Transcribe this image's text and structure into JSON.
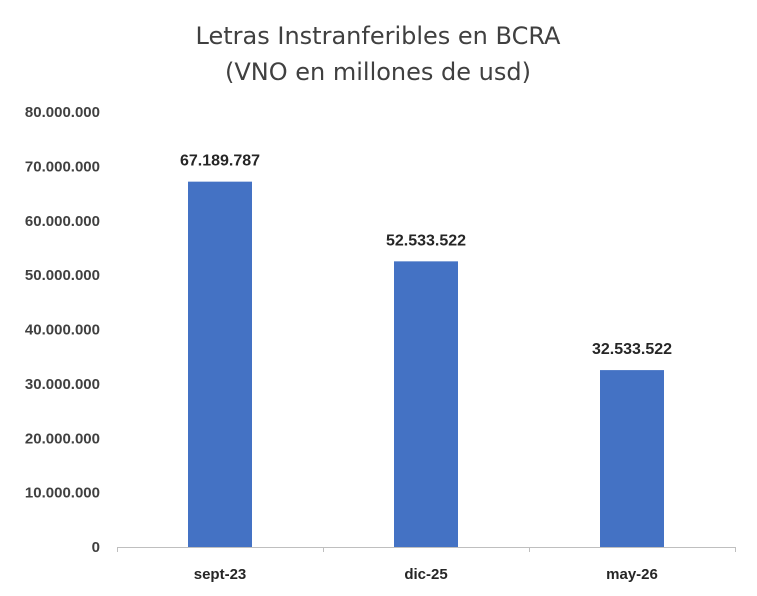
{
  "chart_data": {
    "type": "bar",
    "title": "Letras Instranferibles en BCRA",
    "subtitle": "(VNO en millones de usd)",
    "categories": [
      "sept-23",
      "dic-25",
      "may-26"
    ],
    "values": [
      67189787,
      52533522,
      32533522
    ],
    "data_labels": [
      "67.189.787",
      "52.533.522",
      "32.533.522"
    ],
    "y_ticks": [
      0,
      10000000,
      20000000,
      30000000,
      40000000,
      50000000,
      60000000,
      70000000,
      80000000
    ],
    "y_tick_labels": [
      "0",
      "10.000.000",
      "20.000.000",
      "30.000.000",
      "40.000.000",
      "50.000.000",
      "60.000.000",
      "70.000.000",
      "80.000.000"
    ],
    "ylim": [
      0,
      80000000
    ],
    "xlabel": "",
    "ylabel": "",
    "grid": false,
    "legend": "none",
    "colors": {
      "bar": "#4472C4",
      "axis": "#BFBFBF"
    }
  }
}
